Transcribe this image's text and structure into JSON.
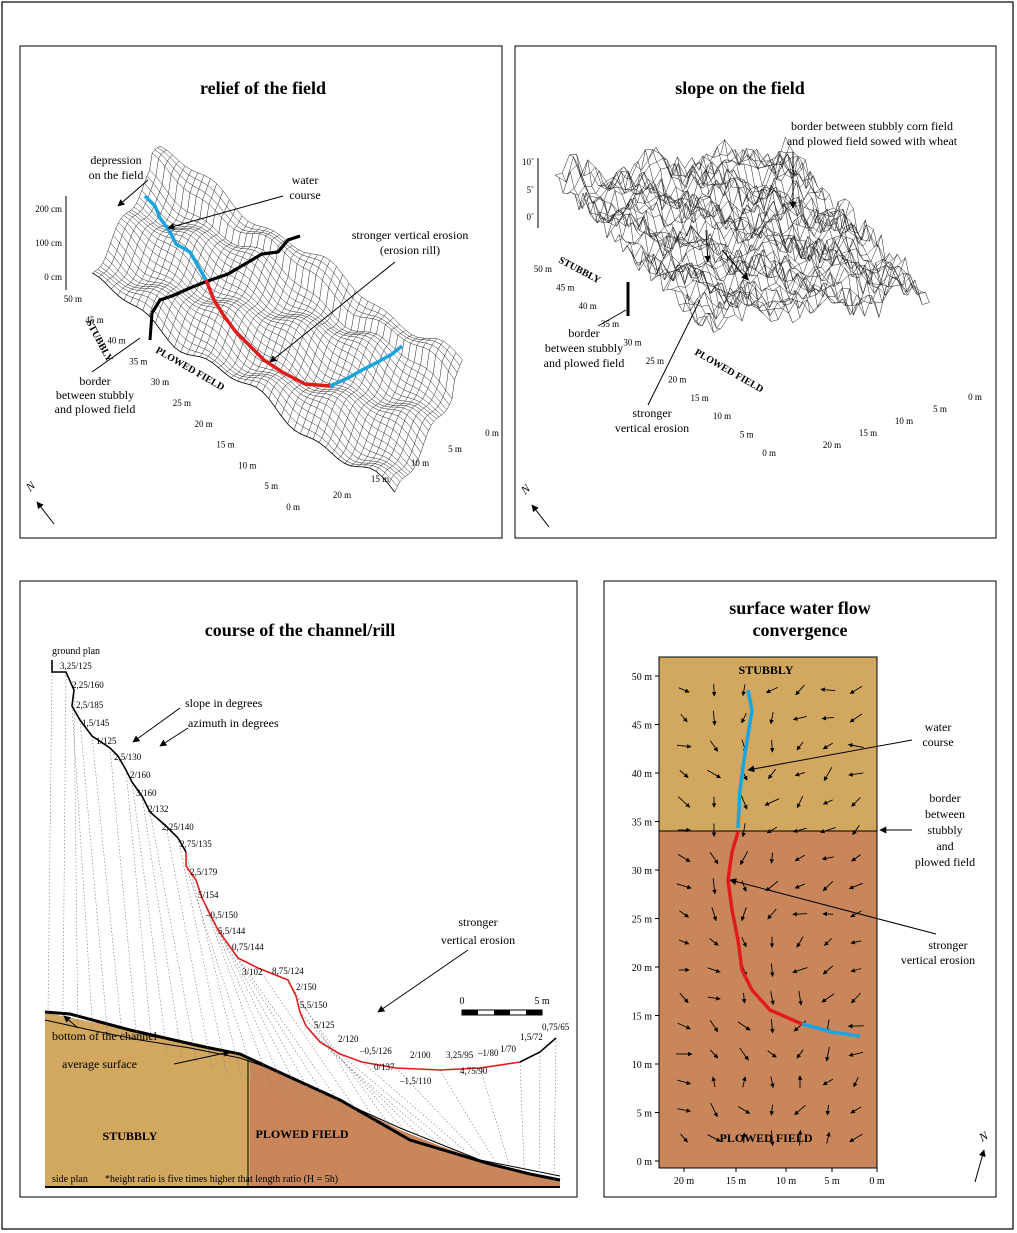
{
  "colors": {
    "water": "#1aa5e0",
    "erosion": "#e11b1b",
    "stubbly": "#d2a760",
    "plowed": "#c9865a"
  },
  "relief": {
    "title": "relief of the field",
    "depression": [
      "depression",
      "on the field"
    ],
    "water": [
      "water",
      "course"
    ],
    "erosion": [
      "stronger vertical erosion",
      "(erosion rill)"
    ],
    "border": [
      "border",
      "between stubbly",
      "and plowed field"
    ],
    "z_ticks": [
      "200 cm",
      "100 cm",
      "0 cm"
    ],
    "y_ticks": [
      "50 m",
      "45 m",
      "40 m",
      "35 m",
      "30 m",
      "25 m",
      "20 m",
      "15 m",
      "10 m",
      "5 m",
      "0 m"
    ],
    "x_ticks": [
      "0 m",
      "5 m",
      "10 m",
      "15 m",
      "20 m"
    ],
    "stubbly": "STUBBLY",
    "plowed": "PLOWED FIELD",
    "north": "N"
  },
  "slope": {
    "title": "slope on the field",
    "border_top": [
      "border between stubbly corn field",
      "and plowed field sowed with wheat"
    ],
    "border": [
      "border",
      "between stubbly",
      "and plowed field"
    ],
    "erosion": [
      "stronger",
      "vertical erosion"
    ],
    "z_ticks": [
      "10˚",
      "5˚",
      "0˚"
    ],
    "y_ticks": [
      "50 m",
      "45 m",
      "40 m",
      "35 m",
      "30 m",
      "25 m",
      "20 m",
      "15 m",
      "10 m",
      "5 m",
      "0 m"
    ],
    "x_ticks": [
      "0 m",
      "5 m",
      "10 m",
      "15 m",
      "20 m"
    ],
    "stubbly": "STUBBLY",
    "plowed": "PLOWED FIELD",
    "north": "N"
  },
  "channel": {
    "title": "course of the channel/rill",
    "ground_plan": "ground plan",
    "side_plan": "side plan",
    "slope_lbl": "slope in degrees",
    "azimuth_lbl": "azimuth in degrees",
    "stronger": [
      "stronger",
      "vertical erosion"
    ],
    "bottom": "bottom of the channel",
    "average": "average surface",
    "stubbly": "STUBBLY",
    "plowed": "PLOWED FIELD",
    "note": "*height ratio is five times higher that length ratio (H = 5h)",
    "scale": [
      "0",
      "5 m"
    ],
    "points": [
      "3,25/125",
      "2,25/160",
      "2,5/185",
      "1,5/145",
      "1/125",
      "2,5/130",
      "2/160",
      "3/160",
      "2/132",
      "2,25/140",
      "2,75/135",
      "2,5/179",
      "5/154",
      "–0,5/150",
      "5,5/144",
      "0,75/144",
      "3/102",
      "8,75/124",
      "2/150",
      "5,5/150",
      "5/125",
      "2/120",
      "–0,5/126",
      "0/137",
      "–1,5/110",
      "2/100",
      "3,25/95",
      "4,75/90",
      "–1/80",
      "1/70",
      "1,5/72",
      "0,75/65"
    ]
  },
  "flow": {
    "title": [
      "surface water flow",
      "convergence"
    ],
    "stubbly": "STUBBLY",
    "plowed": "PLOWED FIELD",
    "water": [
      "water",
      "course"
    ],
    "border": [
      "border",
      "between",
      "stubbly",
      "and",
      "plowed field"
    ],
    "erosion": [
      "stronger",
      "vertical erosion"
    ],
    "y_ticks": [
      "50 m",
      "45 m",
      "40 m",
      "35 m",
      "30 m",
      "25 m",
      "20 m",
      "15 m",
      "10 m",
      "5 m",
      "0 m"
    ],
    "x_ticks": [
      "20 m",
      "15 m",
      "10 m",
      "5 m",
      "0 m"
    ],
    "north": "N"
  }
}
